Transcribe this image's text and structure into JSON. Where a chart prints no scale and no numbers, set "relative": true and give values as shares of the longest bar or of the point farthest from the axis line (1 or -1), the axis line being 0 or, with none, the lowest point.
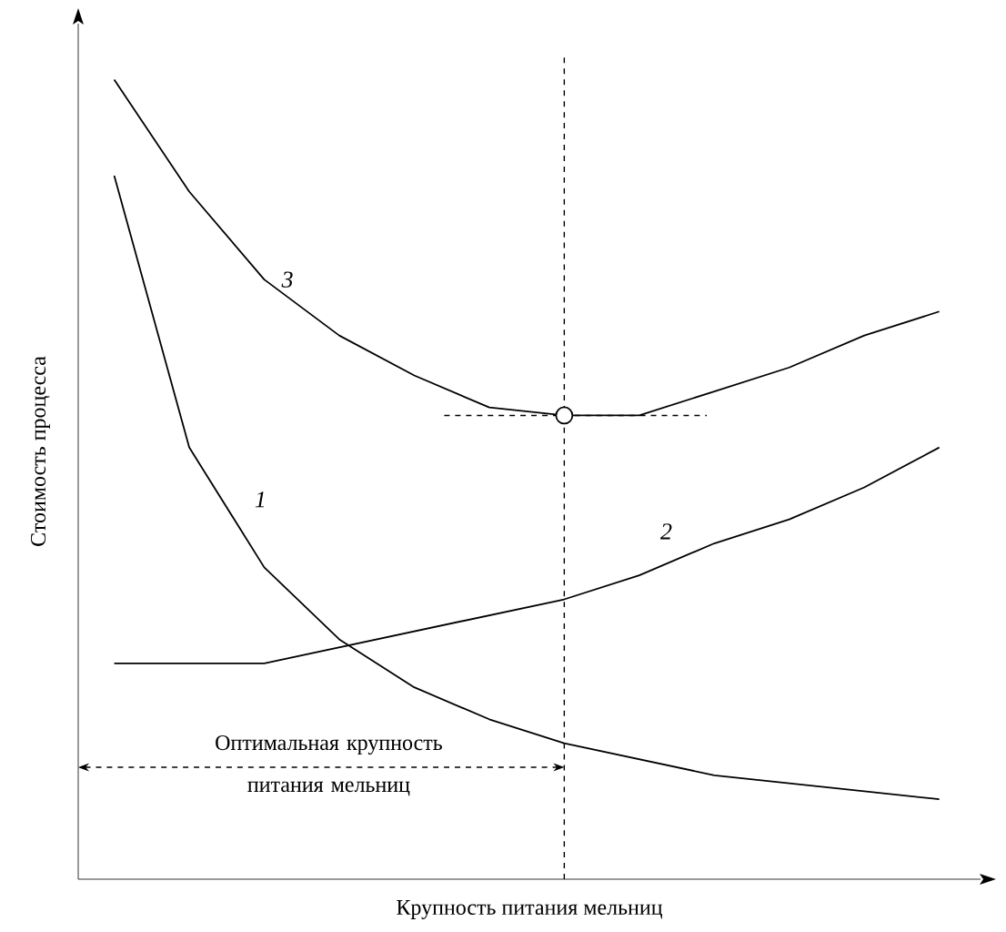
{
  "chart_data": {
    "type": "line",
    "relative": true,
    "xlabel": "Крупность питания мельниц",
    "ylabel": "Стоимость процесса",
    "categories": [
      null,
      null,
      null,
      null,
      null,
      null,
      null,
      null,
      null,
      null,
      null,
      null
    ],
    "series": [
      {
        "name": "1",
        "color": "#000000",
        "values": [
          0.88,
          0.54,
          0.39,
          0.3,
          0.24,
          0.2,
          0.17,
          0.15,
          0.13,
          0.12,
          0.11,
          0.1
        ]
      },
      {
        "name": "2",
        "color": "#000000",
        "values": [
          0.27,
          0.27,
          0.27,
          0.29,
          0.31,
          0.33,
          0.35,
          0.38,
          0.42,
          0.45,
          0.49,
          0.54
        ]
      },
      {
        "name": "3",
        "color": "#000000",
        "values": [
          1,
          0.86,
          0.75,
          0.68,
          0.63,
          0.59,
          0.58,
          0.58,
          0.61,
          0.64,
          0.68,
          0.71
        ]
      }
    ],
    "ref_lines": [
      {
        "axis": "y",
        "value": 0.58,
        "line_style": "dashed"
      }
    ],
    "annotations": [
      "Оптимальная крупность питания мельниц"
    ],
    "line_style": "solid"
  }
}
